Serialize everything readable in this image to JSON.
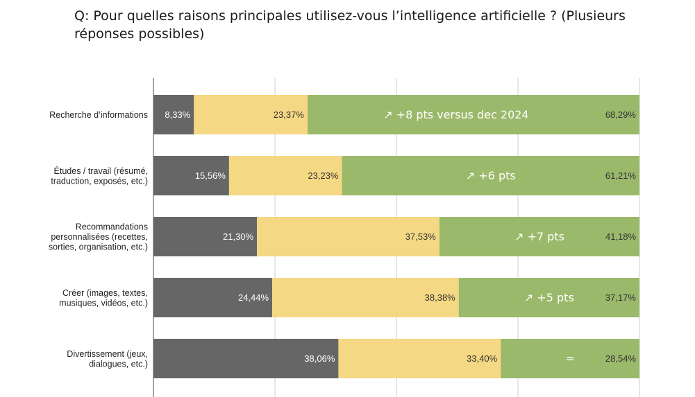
{
  "question": "Q: Pour quelles raisons principales utilisez-vous l’intelligence artificielle ? (Plusieurs réponses possibles)",
  "colors": {
    "series_1": "#666666",
    "series_2": "#f5d883",
    "series_3": "#9bb96a",
    "gridline": "#cfcfcf",
    "axis": "#666666"
  },
  "chart_data": {
    "type": "bar",
    "orientation": "horizontal",
    "stacked": true,
    "xlim": [
      0,
      100
    ],
    "grid": true,
    "categories": [
      [
        "Recherche d’informations"
      ],
      [
        "Études / travail (résumé,",
        "traduction, exposés, etc.)"
      ],
      [
        "Recommandations",
        "personnalisées (recettes,",
        "sorties, organisation, etc.)"
      ],
      [
        "Créer (images, textes,",
        "musiques, vidéos, etc.)"
      ],
      [
        "Divertissement (jeux,",
        "dialogues, etc.)"
      ]
    ],
    "series": [
      {
        "values": [
          8.33,
          15.56,
          21.3,
          24.44,
          38.06
        ],
        "labels": [
          "8,33%",
          "15,56%",
          "21,30%",
          "24,44%",
          "38,06%"
        ]
      },
      {
        "values": [
          23.37,
          23.23,
          37.53,
          38.38,
          33.4
        ],
        "labels": [
          "23,37%",
          "23,23%",
          "37,53%",
          "38,38%",
          "33,40%"
        ]
      },
      {
        "values": [
          68.29,
          61.21,
          41.18,
          37.17,
          28.54
        ],
        "labels": [
          "68,29%",
          "61,21%",
          "41,18%",
          "37,17%",
          "28,54%"
        ]
      }
    ],
    "annotations": [
      "↗ +8 pts versus dec 2024",
      "↗ +6 pts",
      "↗ +7 pts",
      "↗ +5 pts",
      "="
    ]
  }
}
